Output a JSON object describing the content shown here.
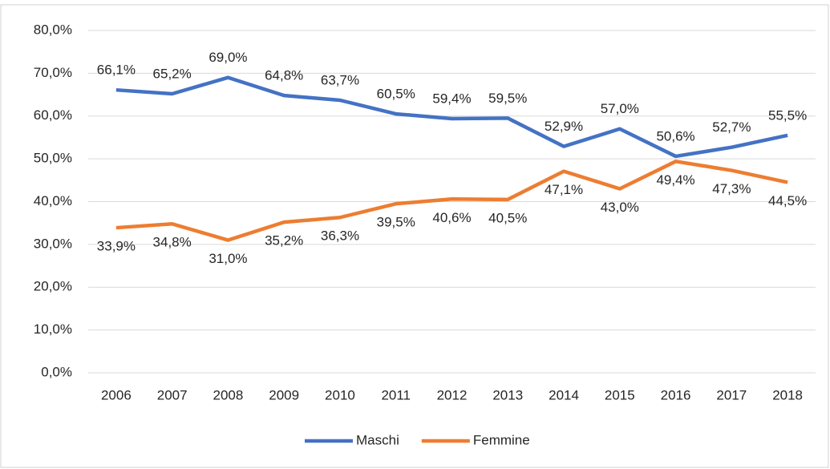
{
  "chart_data": {
    "type": "line",
    "categories": [
      "2006",
      "2007",
      "2008",
      "2009",
      "2010",
      "2011",
      "2012",
      "2013",
      "2014",
      "2015",
      "2016",
      "2017",
      "2018"
    ],
    "series": [
      {
        "name": "Maschi",
        "color": "#4472c4",
        "values": [
          66.1,
          65.2,
          69.0,
          64.8,
          63.7,
          60.5,
          59.4,
          59.5,
          52.9,
          57.0,
          50.6,
          52.7,
          55.5
        ],
        "value_labels": [
          "66,1%",
          "65,2%",
          "69,0%",
          "64,8%",
          "63,7%",
          "60,5%",
          "59,4%",
          "59,5%",
          "52,9%",
          "57,0%",
          "50,6%",
          "52,7%",
          "55,5%"
        ]
      },
      {
        "name": "Femmine",
        "color": "#ed7d31",
        "values": [
          33.9,
          34.8,
          31.0,
          35.2,
          36.3,
          39.5,
          40.6,
          40.5,
          47.1,
          43.0,
          49.4,
          47.3,
          44.5
        ],
        "value_labels": [
          "33,9%",
          "34,8%",
          "31,0%",
          "35,2%",
          "36,3%",
          "39,5%",
          "40,6%",
          "40,5%",
          "47,1%",
          "43,0%",
          "49,4%",
          "47,3%",
          "44,5%"
        ]
      }
    ],
    "ylim": [
      0,
      80
    ],
    "yticks": [
      {
        "value": 0,
        "label": "0,0%"
      },
      {
        "value": 10,
        "label": "10,0%"
      },
      {
        "value": 20,
        "label": "20,0%"
      },
      {
        "value": 30,
        "label": "30,0%"
      },
      {
        "value": 40,
        "label": "40,0%"
      },
      {
        "value": 50,
        "label": "50,0%"
      },
      {
        "value": 60,
        "label": "60,0%"
      },
      {
        "value": 70,
        "label": "70,0%"
      },
      {
        "value": 80,
        "label": "80,0%"
      }
    ],
    "grid": true,
    "legend": "bottom"
  }
}
